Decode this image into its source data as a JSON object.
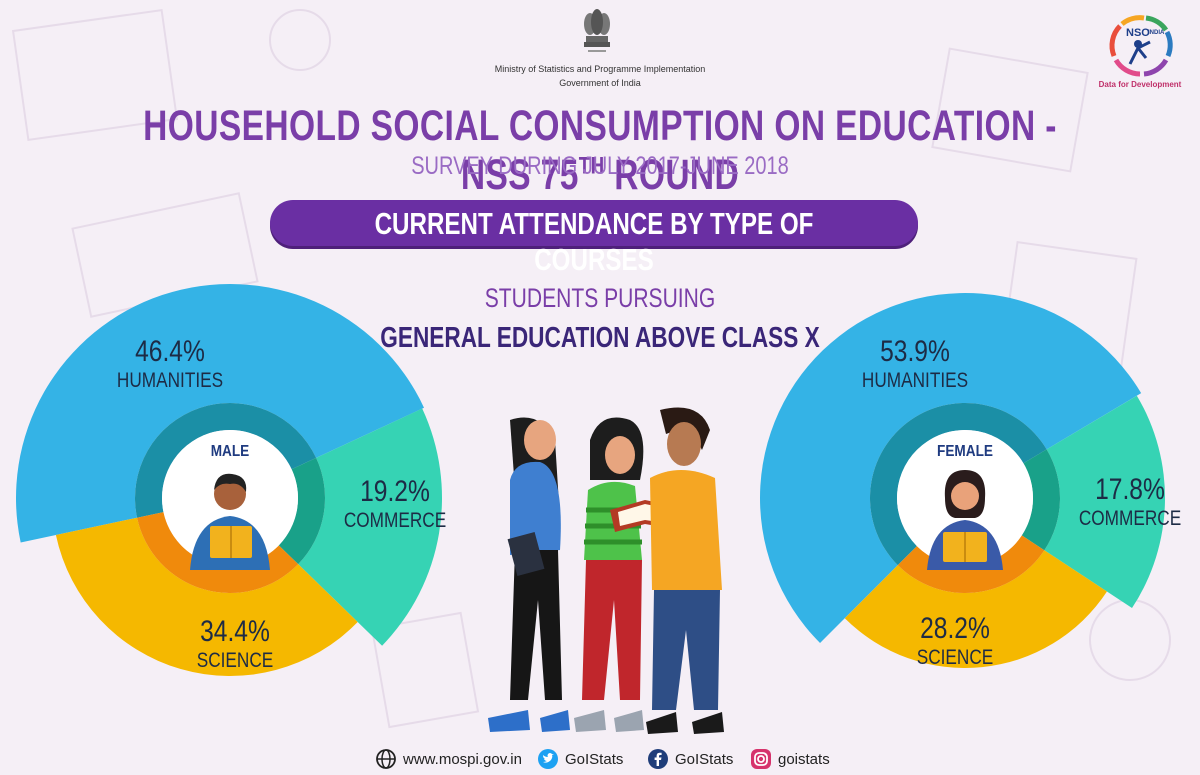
{
  "header": {
    "ministry": "Ministry of Statistics and Programme Implementation",
    "government": "Government of India",
    "logo_tagline": "Data for Development",
    "logo_text": "NSO",
    "logo_subtext": "INDIA"
  },
  "title": {
    "main": "HOUSEHOLD SOCIAL CONSUMPTION ON EDUCATION - NSS 75",
    "main_sup": "TH",
    "main_tail": " ROUND",
    "subtitle": "SURVEY DURING JULY 2017-JUNE 2018"
  },
  "banner": "CURRENT ATTENDANCE BY TYPE OF COURSES",
  "subheading": {
    "line1": "STUDENTS PURSUING",
    "line2": "GENERAL EDUCATION ABOVE CLASS X"
  },
  "colors": {
    "humanities": "#34b3e6",
    "commerce": "#36d3b4",
    "science": "#f5b800",
    "inner_ring": "#1f93a8",
    "title_purple": "#7a3ea8",
    "banner_purple": "#6a2fa3"
  },
  "chart_data": [
    {
      "type": "pie",
      "title": "MALE",
      "categories": [
        "HUMANITIES",
        "COMMERCE",
        "SCIENCE"
      ],
      "values": [
        46.4,
        19.2,
        34.4
      ],
      "labels": [
        "46.4%",
        "19.2%",
        "34.4%"
      ]
    },
    {
      "type": "pie",
      "title": "FEMALE",
      "categories": [
        "HUMANITIES",
        "COMMERCE",
        "SCIENCE"
      ],
      "values": [
        53.9,
        17.8,
        28.2
      ],
      "labels": [
        "53.9%",
        "17.8%",
        "28.2%"
      ]
    }
  ],
  "footer": {
    "website": "www.mospi.gov.in",
    "twitter": "GoIStats",
    "facebook": "GoIStats",
    "instagram": "goistats"
  }
}
